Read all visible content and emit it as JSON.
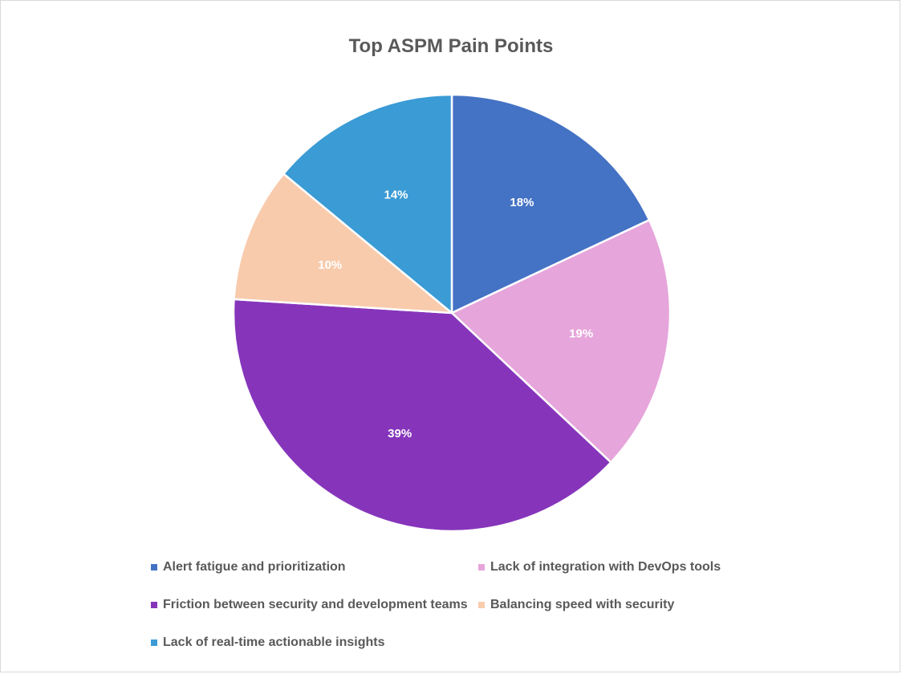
{
  "chart_data": {
    "type": "pie",
    "title": "Top ASPM Pain Points",
    "labels": [
      "Alert fatigue and prioritization",
      "Lack of integration with DevOps tools",
      "Friction between security and development teams",
      "Balancing speed with security",
      "Lack of real-time actionable insights"
    ],
    "values": [
      18,
      19,
      39,
      10,
      14
    ],
    "value_labels": [
      "18%",
      "19%",
      "39%",
      "10%",
      "14%"
    ],
    "colors": [
      "#4472C4",
      "#E6A5DB",
      "#8635BB",
      "#F8CBAD",
      "#3A9BD5"
    ],
    "legend_position": "bottom"
  }
}
